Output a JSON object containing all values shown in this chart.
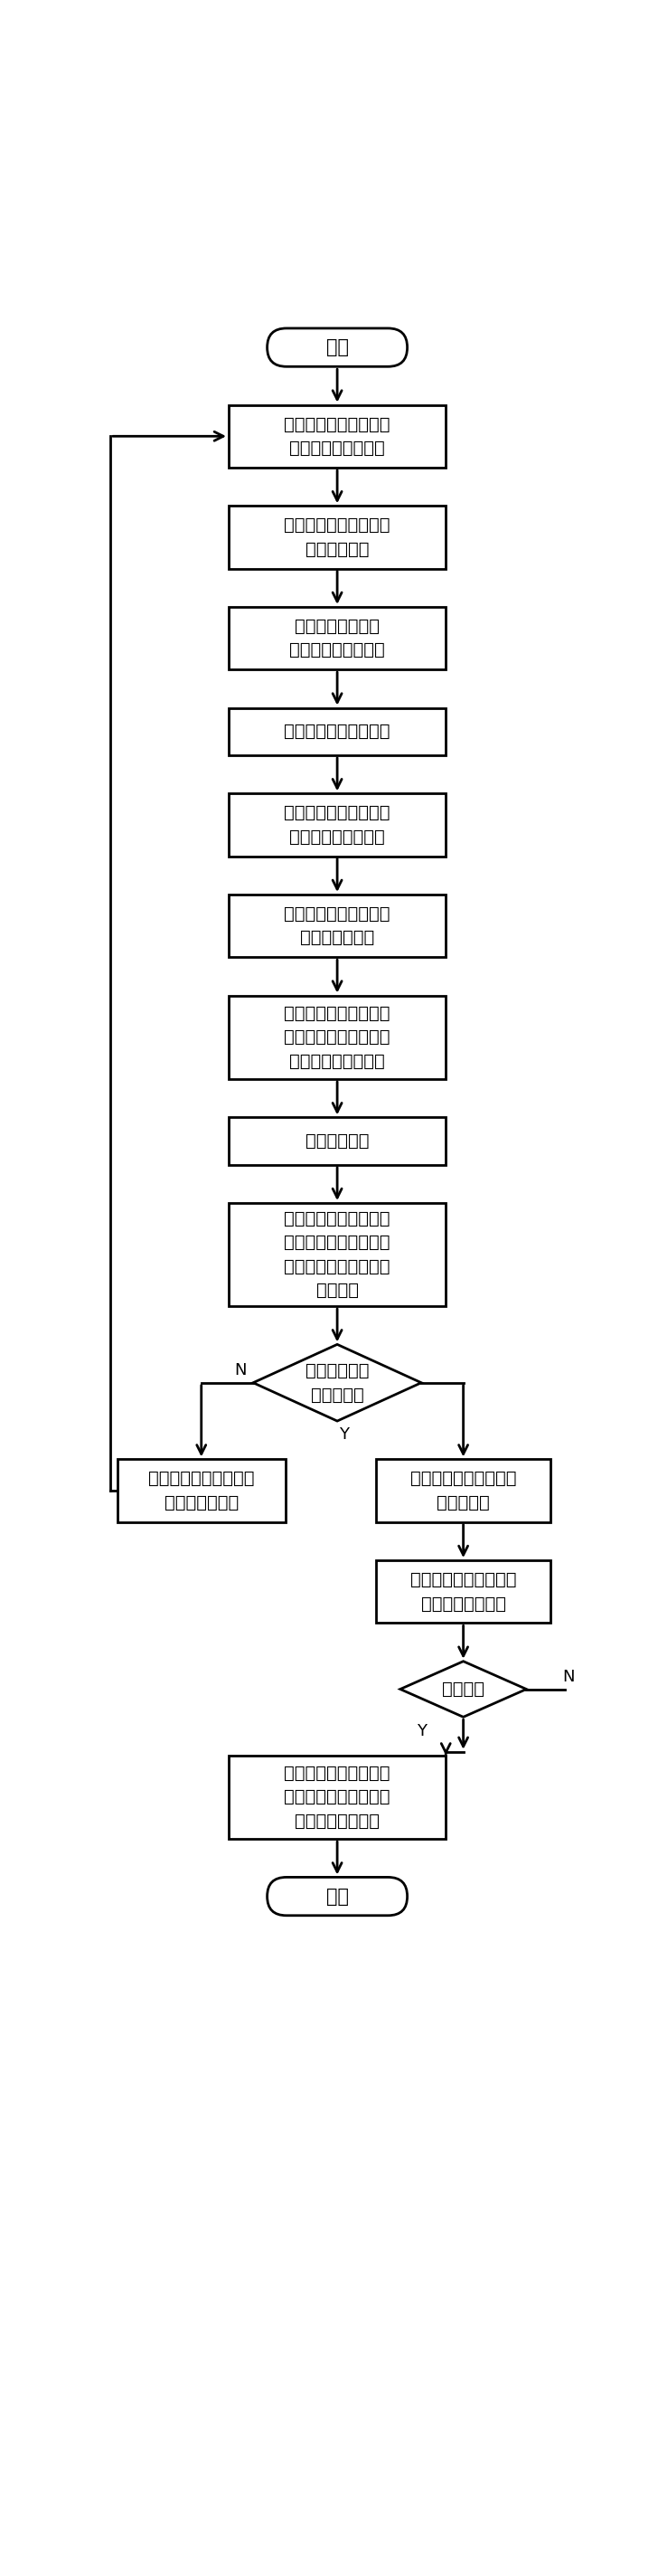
{
  "bg_color": "#ffffff",
  "lw": 2.0,
  "font_size": 14,
  "font_size_sm": 12,
  "start_label": "开始",
  "end_label": "结束",
  "n1_label": "周期性获取主路和匹道\n流量检测设备的信息",
  "n2_label": "对主路和匹道车流量进\n行标准化处理",
  "n3_label": "周期性获取合流区\n事件检测设备的信息",
  "n4_label": "对事件等级进行标准化",
  "n5_label": "周期性获取主路和匹道\n车辆检测设备的信息",
  "n6_label": "对主路和匹道车辆车型\n进行标准化处理",
  "n7_label": "采用交汇点动态计算模\n型预测主路车辆和匹道\n车辆行驶轨迹交汇点",
  "n8_label": "计算碰撞系数",
  "n9_label": "采用碰撞风险计算模型\n计算基于流量、车型、\n事件和碰撞系数的综合\n碰撞风险",
  "d1_label": "综合碰撞风险\n大于阀值？",
  "n10_label": "将预警信息发送到可变\n电子情报板显示",
  "n11_label": "预警信息发送给车载计\n算通信单元",
  "n12_label": "利用预警显示判别模型\n判断是否需要预警",
  "d2_label": "需要预警",
  "n13_label": "预警信息发送给显示终\n端以语音、图片、文字\n方式展示预警信息",
  "label_N": "N",
  "label_Y": "Y"
}
